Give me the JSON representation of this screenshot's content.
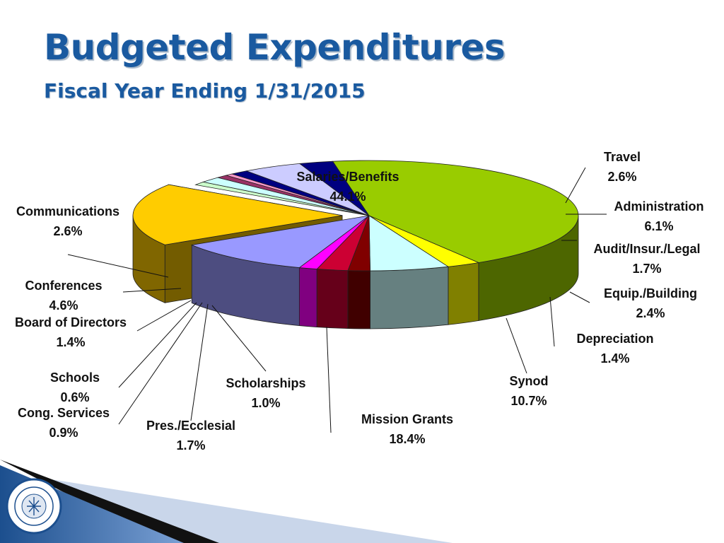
{
  "slide": {
    "title": "Budgeted Expenditures",
    "subtitle": "Fiscal Year Ending 1/31/2015"
  },
  "chart_data": {
    "type": "pie",
    "style": "3d-exploded",
    "title": "Budgeted Expenditures",
    "subtitle": "Fiscal Year Ending 1/31/2015",
    "slices": [
      {
        "label": "Salaries/Benefits",
        "value": 44.1,
        "display": "44.1%",
        "color": "#99cc00"
      },
      {
        "label": "Travel",
        "value": 2.6,
        "display": "2.6%",
        "color": "#ffff00"
      },
      {
        "label": "Administration",
        "value": 6.1,
        "display": "6.1%",
        "color": "#ccffff"
      },
      {
        "label": "Audit/Insur./Legal",
        "value": 1.7,
        "display": "1.7%",
        "color": "#800000"
      },
      {
        "label": "Equip./Building",
        "value": 2.4,
        "display": "2.4%",
        "color": "#cc0033"
      },
      {
        "label": "Depreciation",
        "value": 1.4,
        "display": "1.4%",
        "color": "#ff00ff"
      },
      {
        "label": "Synod",
        "value": 10.7,
        "display": "10.7%",
        "color": "#9999ff"
      },
      {
        "label": "Mission Grants",
        "value": 18.4,
        "display": "18.4%",
        "color": "#ffcc00"
      },
      {
        "label": "Scholarships",
        "value": 1.0,
        "display": "1.0%",
        "color": "#ccffcc"
      },
      {
        "label": "Pres./Ecclesial",
        "value": 1.7,
        "display": "1.7%",
        "color": "#ccffff"
      },
      {
        "label": "Cong. Services",
        "value": 0.9,
        "display": "0.9%",
        "color": "#993366"
      },
      {
        "label": "Schools",
        "value": 0.6,
        "display": "0.6%",
        "color": "#ff99cc"
      },
      {
        "label": "Board of Directors",
        "value": 1.4,
        "display": "1.4%",
        "color": "#000080"
      },
      {
        "label": "Conferences",
        "value": 4.6,
        "display": "4.6%",
        "color": "#ccccff"
      },
      {
        "label": "Communications",
        "value": 2.6,
        "display": "2.6%",
        "color": "#000080"
      }
    ]
  }
}
